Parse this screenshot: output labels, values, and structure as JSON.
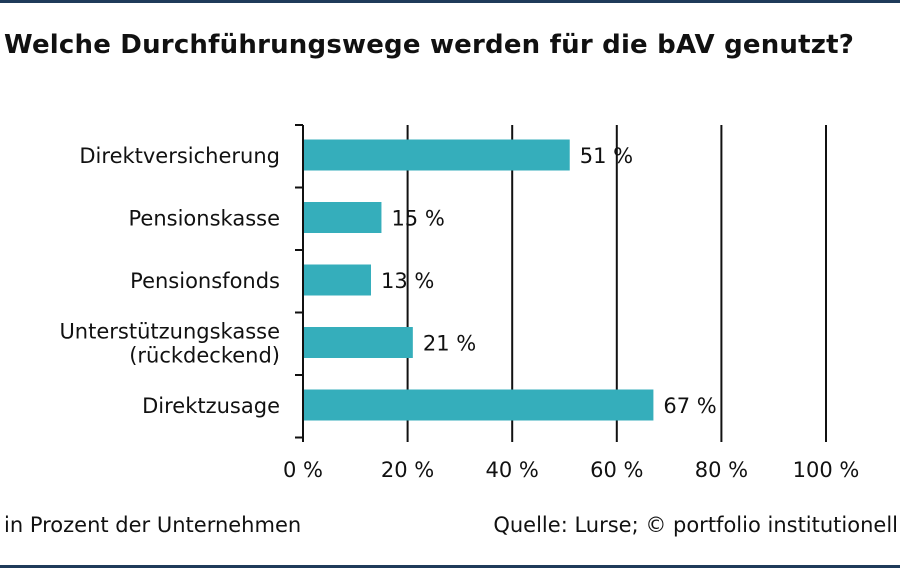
{
  "title": "Welche Durchführungswege werden für die bAV genutzt?",
  "footer": {
    "note": "in Prozent der Unternehmen",
    "source": "Quelle: Lurse; © portfolio institutionell"
  },
  "colors": {
    "bar": "#35aebb",
    "rule": "#1f3b5a",
    "axis": "#111111"
  },
  "chart_data": {
    "type": "bar",
    "orientation": "horizontal",
    "categories": [
      [
        "Direktversicherung"
      ],
      [
        "Pensionskasse"
      ],
      [
        "Pensionsfonds"
      ],
      [
        "Unterstützungskasse",
        "(rückdeckend)"
      ],
      [
        "Direktzusage"
      ]
    ],
    "values": [
      51,
      15,
      13,
      21,
      67
    ],
    "value_labels": [
      "51 %",
      "15 %",
      "13 %",
      "21 %",
      "67 %"
    ],
    "xlim": [
      0,
      100
    ],
    "xticks": [
      0,
      20,
      40,
      60,
      80,
      100
    ],
    "xtick_labels": [
      "0 %",
      "20 %",
      "40 %",
      "60 %",
      "80 %",
      "100 %"
    ],
    "grid": "vertical",
    "legend": "none"
  }
}
